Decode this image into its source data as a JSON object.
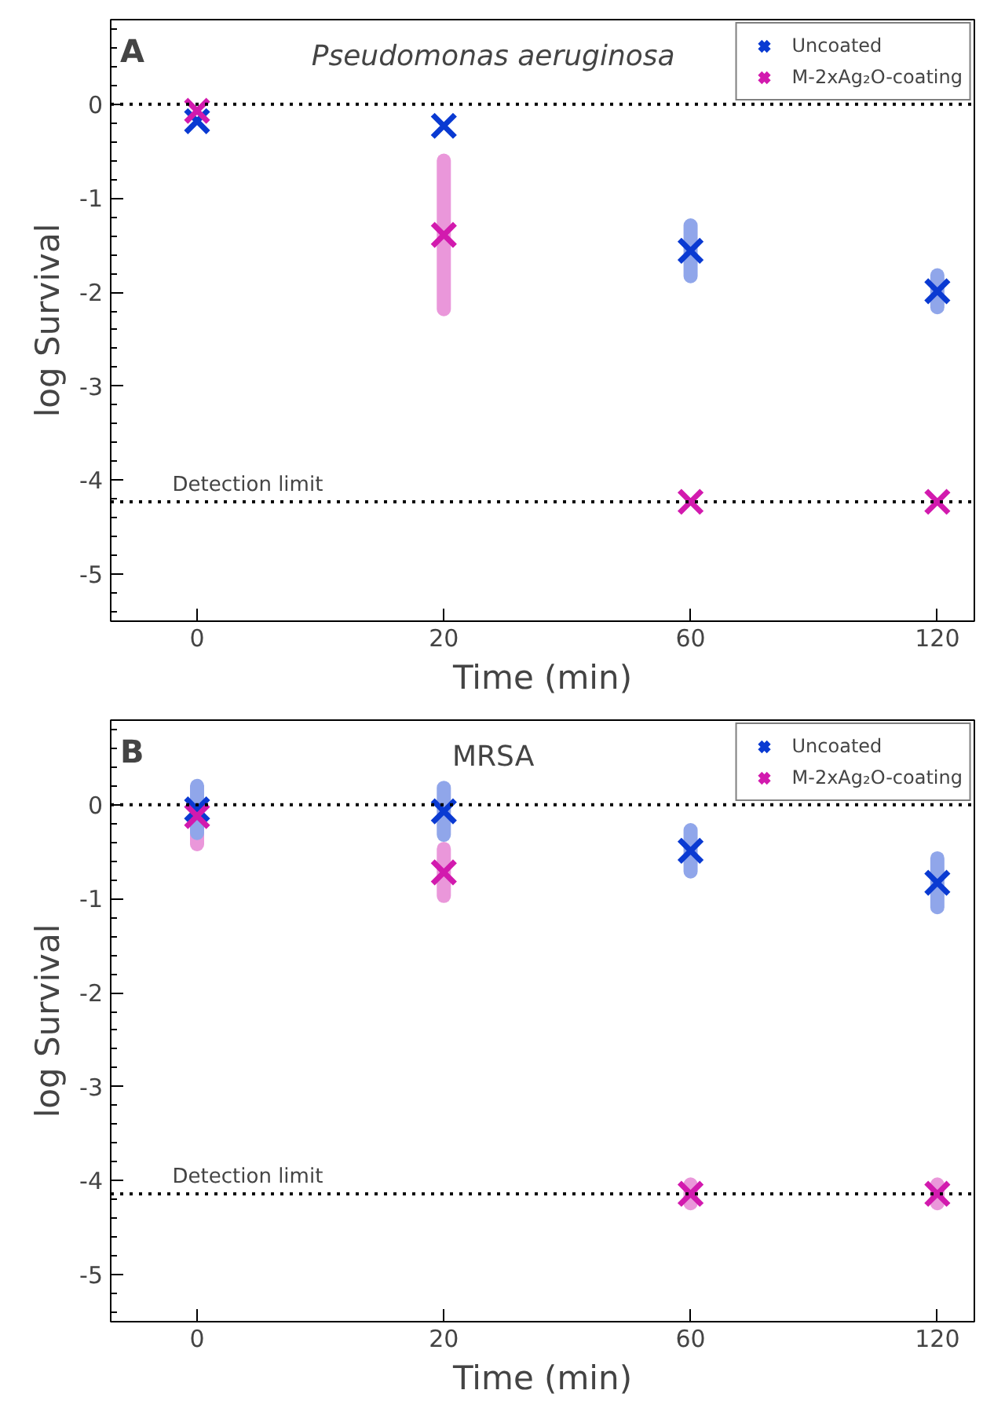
{
  "chart_data": [
    {
      "type": "scatter",
      "title": "Pseudomonas aeruginosa",
      "xlabel": "Time (min)",
      "ylabel": "log Survival",
      "annotations": [
        "A"
      ],
      "categories": [
        "0",
        "20",
        "60",
        "120"
      ],
      "series": [
        {
          "name": "Uncoated",
          "color": "#0a3ad2",
          "values": [
            -0.18,
            -0.23,
            -1.56,
            -1.99
          ],
          "errors": [
            null,
            null,
            0.27,
            0.17
          ]
        },
        {
          "name": "M-2xAg₂O-coating",
          "color": "#d21aae",
          "values": [
            -0.07,
            -1.39,
            -4.23,
            -4.23
          ],
          "errors": [
            null,
            0.79,
            null,
            null
          ]
        }
      ],
      "ylim": [
        -5.5,
        0.9
      ],
      "yticks": [
        -5,
        -4,
        -3,
        -2,
        -1,
        0
      ],
      "ref_lines": [
        {
          "axis": "y",
          "value": 0,
          "line_style": "dotted"
        },
        {
          "axis": "y",
          "value": -4.23,
          "label": "Detection limit",
          "line_style": "dotted"
        }
      ],
      "marker": "cross",
      "legend": "top right",
      "grid": false
    },
    {
      "type": "scatter",
      "title": "MRSA",
      "xlabel": "Time (min)",
      "ylabel": "log Survival",
      "annotations": [
        "B"
      ],
      "categories": [
        "0",
        "20",
        "60",
        "120"
      ],
      "series": [
        {
          "name": "Uncoated",
          "color": "#0a3ad2",
          "values": [
            -0.05,
            -0.07,
            -0.49,
            -0.83
          ],
          "errors": [
            0.25,
            0.25,
            0.22,
            0.26
          ]
        },
        {
          "name": "M-2xAg₂O-coating",
          "color": "#d21aae",
          "values": [
            -0.12,
            -0.72,
            -4.14,
            -4.14
          ],
          "errors": [
            0.3,
            0.25,
            0.1,
            0.1
          ]
        }
      ],
      "ylim": [
        -5.5,
        0.9
      ],
      "yticks": [
        -5,
        -4,
        -3,
        -2,
        -1,
        0
      ],
      "ref_lines": [
        {
          "axis": "y",
          "value": 0,
          "line_style": "dotted"
        },
        {
          "axis": "y",
          "value": -4.14,
          "label": "Detection limit",
          "line_style": "dotted"
        }
      ],
      "marker": "cross",
      "legend": "top right",
      "grid": false
    }
  ]
}
